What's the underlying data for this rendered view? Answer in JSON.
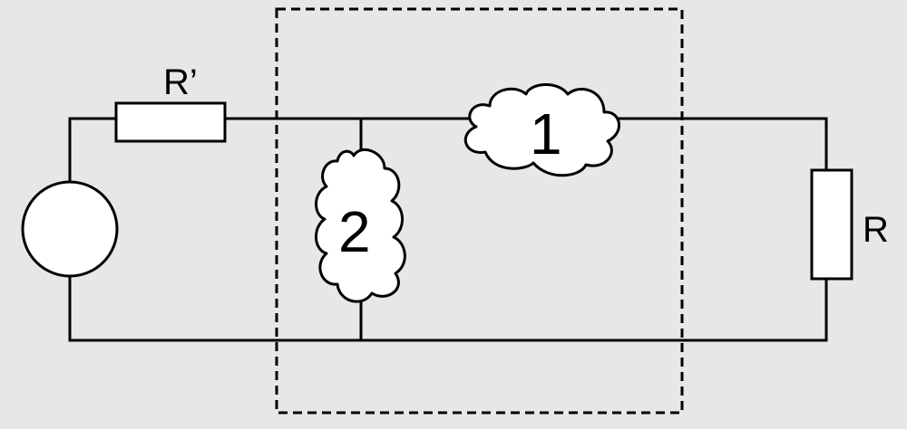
{
  "diagram": {
    "resistor_series_label": "R’",
    "resistor_load_label": "R",
    "block_1_label": "1",
    "block_2_label": "2"
  },
  "colors": {
    "background": "#e7e7e7",
    "stroke": "#000000",
    "fill": "#ffffff"
  }
}
